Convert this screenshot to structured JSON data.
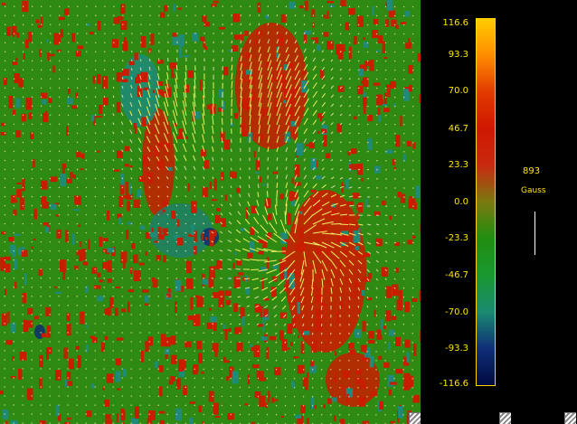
{
  "colorbar": {
    "ticks": [
      "116.6",
      "93.3",
      "70.0",
      "46.7",
      "23.3",
      "0.0",
      "-23.3",
      "-46.7",
      "-70.0",
      "-93.3",
      "-116.6"
    ],
    "colors": [
      "#ffcc00",
      "#ff8c00",
      "#e23a00",
      "#cf1800",
      "#c82a10",
      "#7a7a10",
      "#208e10",
      "#1a9830",
      "#1a8a70",
      "#102e78",
      "#000a40"
    ]
  },
  "scale": {
    "value": "893",
    "unit": "Gauss"
  }
}
